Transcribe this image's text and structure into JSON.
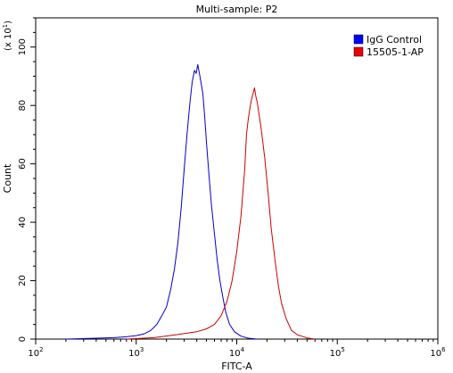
{
  "chart_data": {
    "type": "line",
    "title": "Multi-sample: P2",
    "xlabel": "FITC-A",
    "ylabel": "Count",
    "y_multiplier": "(x 10",
    "y_multiplier_exp": "1",
    "x_scale": "log",
    "xlim": [
      100,
      1000000
    ],
    "ylim": [
      0,
      110
    ],
    "x_ticks": [
      {
        "value": 100,
        "base": "10",
        "exp": "2"
      },
      {
        "value": 1000,
        "base": "10",
        "exp": "3"
      },
      {
        "value": 10000,
        "base": "10",
        "exp": "4"
      },
      {
        "value": 100000,
        "base": "10",
        "exp": "5"
      },
      {
        "value": 1000000,
        "base": "10",
        "exp": "6"
      }
    ],
    "y_ticks": [
      0,
      20,
      40,
      60,
      80,
      100
    ],
    "legend_position": "top-right",
    "series": [
      {
        "name": "IgG Control",
        "color": "#0000cc",
        "legend_color": "#0000ff",
        "points": [
          [
            200,
            0
          ],
          [
            400,
            0.3
          ],
          [
            600,
            0.5
          ],
          [
            800,
            0.8
          ],
          [
            1000,
            1.2
          ],
          [
            1200,
            1.8
          ],
          [
            1400,
            3
          ],
          [
            1600,
            5
          ],
          [
            1800,
            8
          ],
          [
            2000,
            11
          ],
          [
            2200,
            17
          ],
          [
            2400,
            24
          ],
          [
            2600,
            33
          ],
          [
            2800,
            45
          ],
          [
            3000,
            58
          ],
          [
            3200,
            70
          ],
          [
            3400,
            80
          ],
          [
            3600,
            88
          ],
          [
            3800,
            92
          ],
          [
            3950,
            91
          ],
          [
            4100,
            94
          ],
          [
            4250,
            91
          ],
          [
            4400,
            88
          ],
          [
            4600,
            84
          ],
          [
            4800,
            76
          ],
          [
            5000,
            67
          ],
          [
            5300,
            56
          ],
          [
            5600,
            46
          ],
          [
            6000,
            36
          ],
          [
            6400,
            27
          ],
          [
            6800,
            20
          ],
          [
            7300,
            14
          ],
          [
            7800,
            9
          ],
          [
            8500,
            5
          ],
          [
            9500,
            2.5
          ],
          [
            11000,
            1
          ],
          [
            13000,
            0.3
          ],
          [
            16000,
            0
          ]
        ]
      },
      {
        "name": "15505-1-AP",
        "color": "#cc0000",
        "legend_color": "#ee0000",
        "points": [
          [
            800,
            0
          ],
          [
            1500,
            0.5
          ],
          [
            2500,
            1.5
          ],
          [
            4000,
            2.5
          ],
          [
            5000,
            3.5
          ],
          [
            6000,
            5
          ],
          [
            7000,
            8
          ],
          [
            8000,
            13
          ],
          [
            9000,
            20
          ],
          [
            10000,
            30
          ],
          [
            11000,
            42
          ],
          [
            12000,
            58
          ],
          [
            12500,
            70
          ],
          [
            13000,
            75
          ],
          [
            13500,
            79
          ],
          [
            14000,
            82
          ],
          [
            14500,
            84
          ],
          [
            15000,
            86
          ],
          [
            15500,
            83
          ],
          [
            16000,
            81
          ],
          [
            16500,
            78
          ],
          [
            17500,
            72
          ],
          [
            19000,
            62
          ],
          [
            20500,
            50
          ],
          [
            22000,
            38
          ],
          [
            24000,
            27
          ],
          [
            26000,
            18
          ],
          [
            28000,
            12
          ],
          [
            31000,
            7
          ],
          [
            35000,
            3
          ],
          [
            40000,
            1.5
          ],
          [
            50000,
            0.4
          ],
          [
            60000,
            0
          ]
        ]
      }
    ]
  }
}
